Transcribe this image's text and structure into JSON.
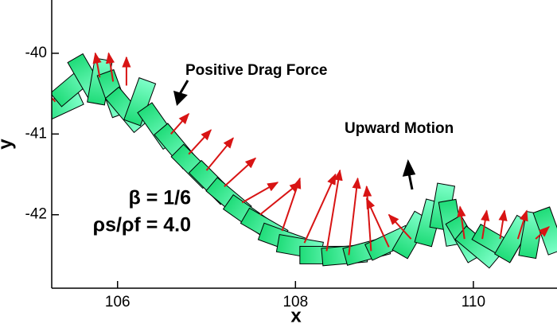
{
  "chart_data": {
    "type": "trajectory",
    "x_label": "x",
    "y_label": "y",
    "xlim": [
      105.26,
      110.94
    ],
    "ylim": [
      -42.91,
      -39.34
    ],
    "xticks": [
      106,
      108,
      110
    ],
    "yticks": [
      -40,
      -41,
      -42
    ],
    "annotations": [
      "Positive Drag Force",
      "Upward Motion",
      "β = 1/6",
      "ρs/ρf = 4.0"
    ],
    "plate_color": "#1fdc78",
    "plate_color2": "#7dffc8",
    "arrow_color": "#d81414",
    "plates": {
      "x": [
        105.35,
        105.5,
        105.65,
        105.8,
        105.95,
        106.1,
        106.25,
        106.45,
        106.65,
        106.85,
        107.05,
        107.25,
        107.45,
        107.65,
        107.85,
        108.05,
        108.3,
        108.55,
        108.8,
        109.05,
        109.3,
        109.5,
        109.65,
        109.75,
        109.9,
        110.05,
        110.25,
        110.45,
        110.65,
        110.85
      ],
      "y": [
        -40.65,
        -40.4,
        -40.3,
        -40.35,
        -40.5,
        -40.7,
        -40.6,
        -40.9,
        -41.15,
        -41.4,
        -41.6,
        -41.8,
        -42.0,
        -42.15,
        -42.3,
        -42.4,
        -42.5,
        -42.5,
        -42.45,
        -42.35,
        -42.25,
        -42.1,
        -41.9,
        -42.1,
        -42.3,
        -42.4,
        -42.35,
        -42.3,
        -42.25,
        -42.2
      ],
      "angle": [
        25,
        40,
        -60,
        80,
        -70,
        -50,
        70,
        -55,
        -50,
        -45,
        -45,
        -40,
        -35,
        -30,
        -20,
        -10,
        0,
        5,
        15,
        25,
        60,
        75,
        80,
        -80,
        -60,
        -40,
        -30,
        60,
        80,
        -70
      ]
    },
    "arrows": {
      "x0": [
        105.3,
        105.8,
        105.95,
        106.1,
        106.6,
        106.8,
        107.0,
        107.2,
        107.4,
        107.6,
        107.85,
        108.1,
        108.35,
        108.6,
        108.85,
        109.05,
        109.3,
        109.9,
        110.1,
        110.3,
        110.5,
        110.7
      ],
      "y0": [
        -40.6,
        -40.3,
        -40.35,
        -40.4,
        -41.0,
        -41.25,
        -41.45,
        -41.65,
        -41.85,
        -42.0,
        -42.2,
        -42.35,
        -42.45,
        -42.5,
        -42.45,
        -42.4,
        -42.3,
        -42.3,
        -42.3,
        -42.3,
        -42.3,
        -42.3
      ],
      "x1": [
        105.0,
        105.75,
        105.9,
        106.1,
        106.8,
        107.05,
        107.3,
        107.55,
        107.8,
        108.05,
        108.05,
        108.45,
        108.5,
        108.7,
        108.8,
        108.8,
        109.05,
        109.85,
        110.15,
        110.35,
        110.6,
        110.85
      ],
      "y1": [
        -40.25,
        -40.0,
        -40.0,
        -40.05,
        -40.75,
        -40.95,
        -41.05,
        -41.3,
        -41.6,
        -41.6,
        -41.55,
        -41.5,
        -41.45,
        -41.55,
        -41.65,
        -41.8,
        -42.0,
        -41.9,
        -41.95,
        -41.95,
        -41.95,
        -42.15
      ]
    }
  }
}
